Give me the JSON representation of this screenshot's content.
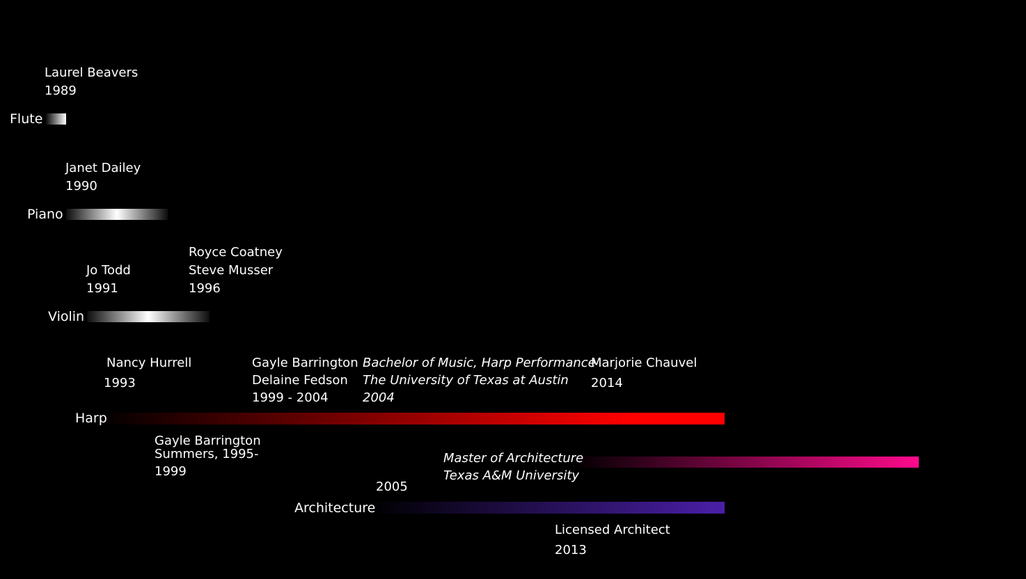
{
  "rows": {
    "flute": {
      "label": "Flute"
    },
    "piano": {
      "label": "Piano"
    },
    "violin": {
      "label": "Violin"
    },
    "harp": {
      "label": "Harp"
    },
    "arch": {
      "label": "Architecture"
    }
  },
  "annotations": {
    "laurel": [
      "Laurel Beavers",
      "1989"
    ],
    "janet": [
      "Janet Dailey",
      "1990"
    ],
    "jotodd": [
      "Jo Todd",
      "1991"
    ],
    "royce": [
      "Royce Coatney",
      "Steve Musser",
      "1996"
    ],
    "nancy_name": "Nancy Hurrell",
    "nancy_year": "1993",
    "gayle_delaine": [
      "Gayle Barrington",
      "Delaine Fedson",
      "1999 - 2004"
    ],
    "bachelor": [
      "Bachelor of Music, Harp Performance",
      "The University of Texas at Austin",
      "2004"
    ],
    "marjorie_name": "Marjorie Chauvel",
    "marjorie_year": "2014",
    "gayle_summers": [
      "Gayle Barrington",
      "Summers, 1995-",
      "1999"
    ],
    "master": [
      "Master of Architecture",
      "Texas A&M University"
    ],
    "arch_year": "2005",
    "licensed_name": "Licensed Architect",
    "licensed_year": "2013"
  },
  "colors": {
    "background": "#000000",
    "text": "#ffffff",
    "instrument_bar": "#ffffff",
    "harp_bar": "#ff0000",
    "master_bar": "#ff0a8c",
    "architecture_bar": "#4a1fa8"
  }
}
